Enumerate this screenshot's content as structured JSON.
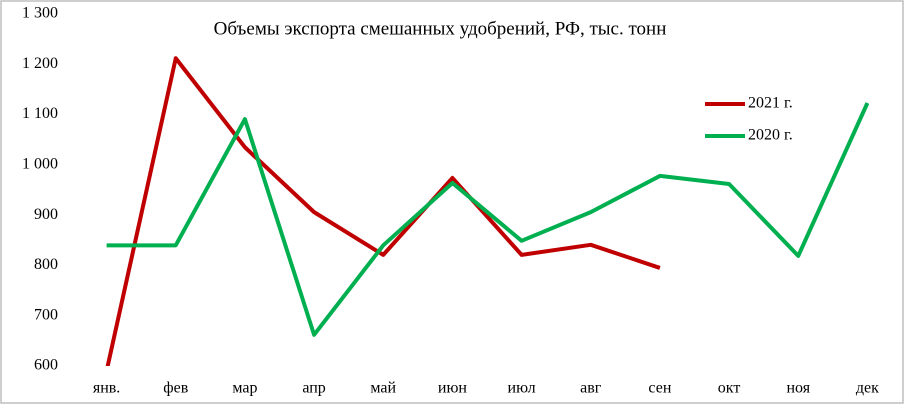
{
  "chart_data": {
    "type": "line",
    "title": "Объемы экспорта смешанных удобрений, РФ, тыс. тонн",
    "categories": [
      "янв.",
      "фев",
      "мар",
      "апр",
      "май",
      "июн",
      "июл",
      "авг",
      "сен",
      "окт",
      "ноя",
      "дек"
    ],
    "series": [
      {
        "name": "2021 г.",
        "color": "#c00000",
        "values": [
          590,
          1212,
          1035,
          906,
          821,
          974,
          821,
          841,
          795,
          null,
          null,
          null
        ]
      },
      {
        "name": "2020 г.",
        "color": "#00b050",
        "values": [
          840,
          840,
          1091,
          662,
          840,
          964,
          849,
          906,
          978,
          962,
          819,
          1123
        ]
      }
    ],
    "ylim": [
      600,
      1300
    ],
    "yticks": [
      600,
      700,
      800,
      900,
      {
        "value": 1000,
        "label": "1 000"
      },
      {
        "value": 1100,
        "label": "1 100"
      },
      {
        "value": 1200,
        "label": "1 200"
      },
      {
        "value": 1300,
        "label": "1 300"
      }
    ],
    "grid": false,
    "legend": "upper-right"
  }
}
